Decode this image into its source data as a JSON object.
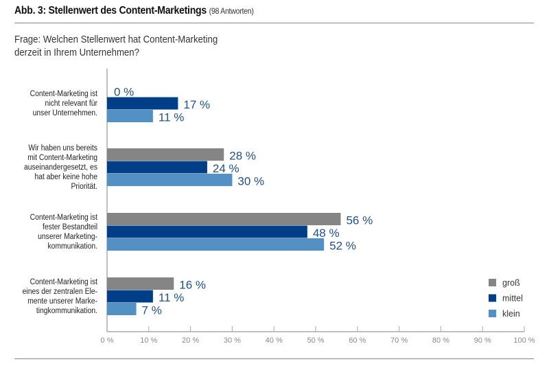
{
  "chart_data": {
    "type": "bar",
    "orientation": "horizontal",
    "title": "Abb. 3: Stellenwert des Content-Marketings",
    "subtitle": "(98 Antworten)",
    "question": [
      "Frage: Welchen Stellenwert hat Content-Marketing",
      "derzeit in Ihrem Unternehmen?"
    ],
    "categories": [
      [
        "Content-Marketing ist",
        "nicht relevant für",
        "unser Unternehmen."
      ],
      [
        "Wir haben uns bereits",
        "mit Content-Marketing",
        "auseinandergesetzt, es",
        "hat aber keine hohe",
        "Priorität."
      ],
      [
        "Content-Marketing ist",
        "fester Bestandteil",
        "unserer Marketing-",
        "kommunikation."
      ],
      [
        "Content-Marketing ist",
        "eines der zentralen Ele-",
        "mente unserer Marke-",
        "tingkommunikation."
      ]
    ],
    "series": [
      {
        "name": "groß",
        "color": "#858585",
        "values": [
          0,
          28,
          56,
          16
        ]
      },
      {
        "name": "mittel",
        "color": "#003f87",
        "values": [
          17,
          24,
          48,
          11
        ]
      },
      {
        "name": "klein",
        "color": "#5390c4",
        "values": [
          11,
          30,
          52,
          7
        ]
      }
    ],
    "data_labels": [
      [
        "0 %",
        "28 %",
        "56 %",
        "16 %"
      ],
      [
        "17 %",
        "24 %",
        "48 %",
        "11 %"
      ],
      [
        "11 %",
        "30 %",
        "52 %",
        "7 %"
      ]
    ],
    "xlim": [
      0,
      100
    ],
    "xticks": [
      "0 %",
      "10 %",
      "20 %",
      "30 %",
      "40 %",
      "50 %",
      "60 %",
      "70 %",
      "80 %",
      "90 %",
      "100 %"
    ],
    "legend_position": "bottom-right",
    "label_color": "#1f4f8f",
    "grid": false
  }
}
